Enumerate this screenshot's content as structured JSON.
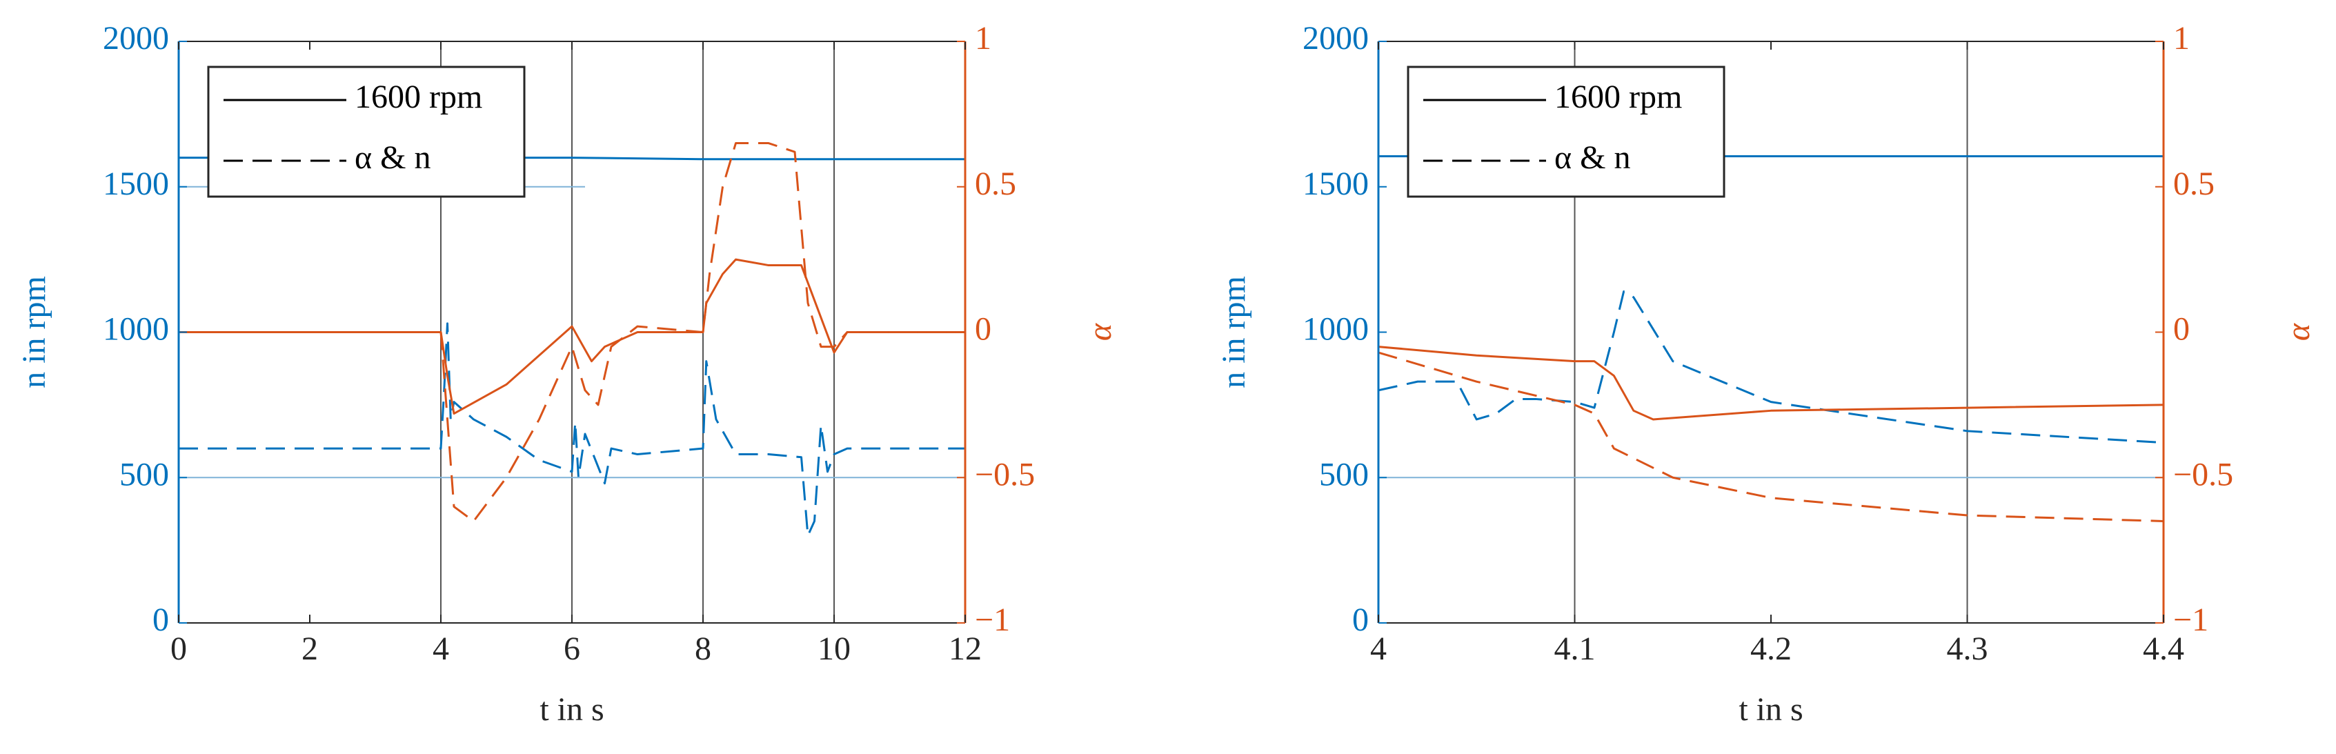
{
  "chart_data": [
    {
      "type": "line",
      "xlabel": "t in s",
      "ylabel": "n in rpm",
      "y2label": "α",
      "xlim": [
        0,
        12
      ],
      "xticks": [
        0,
        2,
        4,
        6,
        8,
        10,
        12
      ],
      "ylim": [
        0,
        2000
      ],
      "yticks": [
        0,
        500,
        1000,
        1500,
        2000
      ],
      "y2lim": [
        -1,
        1
      ],
      "y2ticks": [
        {
          "value": -1,
          "label": "−1"
        },
        {
          "value": -0.5,
          "label": "−0.5"
        },
        0,
        0.5,
        1
      ],
      "legend": "upper left",
      "legend_entries": [
        {
          "label": "1600 rpm",
          "dash": false
        },
        {
          "label": "α & n",
          "dash": true
        }
      ],
      "vlines": [
        4,
        6,
        8,
        10
      ],
      "series": [
        {
          "color": "#0072BD",
          "dash": false,
          "linewidth": 3,
          "x": [
            0,
            4,
            6,
            8,
            12
          ],
          "values": [
            1600,
            1600,
            1600,
            1595,
            1595
          ]
        },
        {
          "color": "#7FB3D8",
          "dash": false,
          "linewidth": 2,
          "x": [
            0,
            6.2
          ],
          "values": [
            1500,
            1500
          ]
        },
        {
          "color": "#7FB3D8",
          "dash": false,
          "linewidth": 2,
          "x": [
            0,
            12
          ],
          "values": [
            500,
            500
          ]
        },
        {
          "color": "#0072BD",
          "dash": true,
          "linewidth": 3,
          "x": [
            0,
            4,
            4.05,
            4.1,
            4.15,
            4.2,
            4.5,
            5,
            5.5,
            6,
            6.05,
            6.1,
            6.2,
            6.5,
            6.6,
            7,
            8,
            8.05,
            8.2,
            8.5,
            9,
            9.5,
            9.6,
            9.7,
            9.8,
            9.9,
            10,
            10.2,
            12
          ],
          "values": [
            600,
            600,
            800,
            1030,
            700,
            760,
            700,
            640,
            560,
            520,
            690,
            500,
            650,
            480,
            600,
            580,
            600,
            900,
            700,
            580,
            580,
            570,
            300,
            350,
            680,
            520,
            580,
            600,
            600
          ]
        },
        {
          "color": "#D95319",
          "dash": false,
          "linewidth": 3,
          "axis": "y2",
          "x": [
            0,
            4,
            4.1,
            4.2,
            5,
            6,
            6.3,
            6.5,
            7,
            8,
            8.05,
            8.3,
            8.5,
            9,
            9.5,
            9.8,
            10,
            10.2,
            12
          ],
          "values": [
            0,
            0,
            -0.15,
            -0.28,
            -0.18,
            0.02,
            -0.1,
            -0.05,
            0,
            0,
            0.1,
            0.2,
            0.25,
            0.23,
            0.23,
            0.05,
            -0.07,
            0,
            0
          ]
        },
        {
          "color": "#D95319",
          "dash": true,
          "linewidth": 3,
          "axis": "y2",
          "x": [
            0,
            4,
            4.2,
            4.5,
            5,
            5.5,
            6,
            6.2,
            6.4,
            6.6,
            7,
            8,
            8.1,
            8.3,
            8.5,
            9,
            9.4,
            9.6,
            9.8,
            10,
            10.2,
            12
          ],
          "values": [
            0,
            0,
            -0.6,
            -0.65,
            -0.5,
            -0.3,
            -0.05,
            -0.2,
            -0.25,
            -0.05,
            0.02,
            0,
            0.2,
            0.5,
            0.65,
            0.65,
            0.62,
            0.1,
            -0.05,
            -0.05,
            0,
            0
          ]
        }
      ]
    },
    {
      "type": "line",
      "xlabel": "t in s",
      "ylabel": "n in rpm",
      "y2label": "α",
      "xlim": [
        4,
        4.4
      ],
      "xticks": [
        4,
        4.1,
        4.2,
        4.3,
        4.4
      ],
      "ylim": [
        0,
        2000
      ],
      "yticks": [
        0,
        500,
        1000,
        1500,
        2000
      ],
      "y2lim": [
        -1,
        1
      ],
      "y2ticks": [
        {
          "value": -1,
          "label": "−1"
        },
        {
          "value": -0.5,
          "label": "−0.5"
        },
        0,
        0.5,
        1
      ],
      "legend": "upper left",
      "legend_entries": [
        {
          "label": "1600 rpm",
          "dash": false
        },
        {
          "label": "α & n",
          "dash": true
        }
      ],
      "vlines": [
        4.1,
        4.3
      ],
      "series": [
        {
          "color": "#0072BD",
          "dash": false,
          "linewidth": 3,
          "x": [
            4,
            4.4
          ],
          "values": [
            1605,
            1605
          ]
        },
        {
          "color": "#7FB3D8",
          "dash": false,
          "linewidth": 2,
          "x": [
            4,
            4.4
          ],
          "values": [
            500,
            500
          ]
        },
        {
          "color": "#0072BD",
          "dash": true,
          "linewidth": 3,
          "x": [
            4,
            4.02,
            4.04,
            4.05,
            4.06,
            4.07,
            4.08,
            4.1,
            4.11,
            4.12,
            4.125,
            4.13,
            4.15,
            4.2,
            4.3,
            4.4
          ],
          "values": [
            800,
            830,
            830,
            700,
            720,
            770,
            770,
            760,
            740,
            1000,
            1140,
            1120,
            900,
            760,
            660,
            620
          ]
        },
        {
          "color": "#D95319",
          "dash": false,
          "linewidth": 3,
          "axis": "y2",
          "x": [
            4,
            4.05,
            4.1,
            4.11,
            4.12,
            4.13,
            4.14,
            4.2,
            4.3,
            4.4
          ],
          "values": [
            -0.05,
            -0.08,
            -0.1,
            -0.1,
            -0.15,
            -0.27,
            -0.3,
            -0.27,
            -0.26,
            -0.25
          ]
        },
        {
          "color": "#D95319",
          "dash": true,
          "linewidth": 3,
          "axis": "y2",
          "x": [
            4,
            4.05,
            4.1,
            4.11,
            4.12,
            4.15,
            4.2,
            4.3,
            4.4
          ],
          "values": [
            -0.07,
            -0.17,
            -0.25,
            -0.28,
            -0.4,
            -0.5,
            -0.57,
            -0.63,
            -0.65
          ]
        }
      ]
    }
  ]
}
